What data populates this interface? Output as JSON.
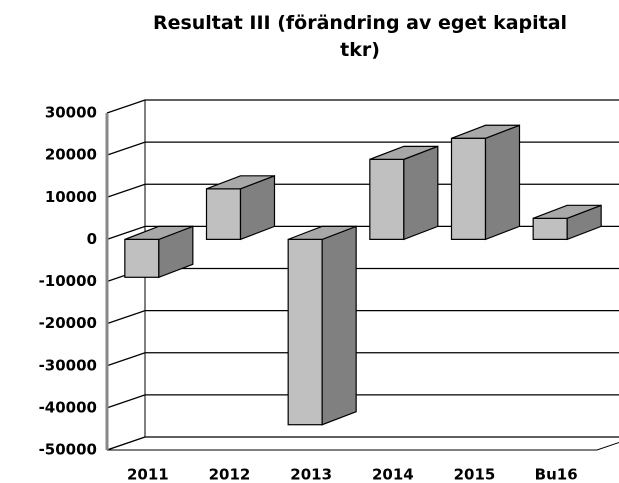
{
  "chart_data": {
    "type": "bar3d",
    "title": "Resultat III (förändring av eget kapital tkr)",
    "categories": [
      "2011",
      "2012",
      "2013",
      "2014",
      "2015",
      "Bu16"
    ],
    "values": [
      -9000,
      12000,
      -44000,
      19000,
      24000,
      5000
    ],
    "color": "#c0c0c0",
    "ylim": [
      -50000,
      30000
    ],
    "yticks": [
      -50000,
      -40000,
      -30000,
      -20000,
      -10000,
      0,
      10000,
      20000,
      30000
    ],
    "grid": true
  }
}
